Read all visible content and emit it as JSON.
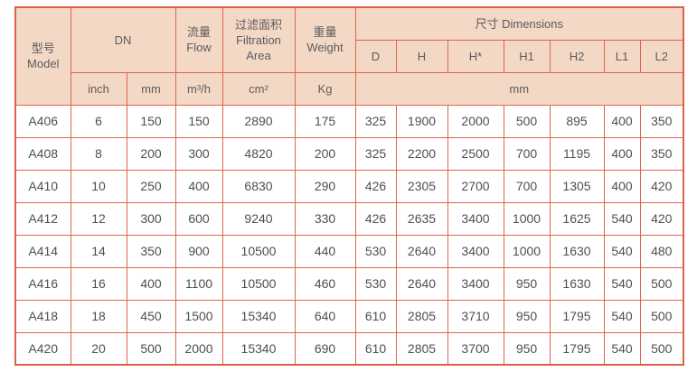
{
  "colors": {
    "header_background": "#f4d8c6",
    "border": "#e0604a",
    "header_text": "#5b5b5d",
    "cell_text": "#4f4f51",
    "page_background": "#ffffff"
  },
  "table": {
    "header": {
      "model_cn": "型号",
      "model_en": "Model",
      "dn": "DN",
      "flow_cn": "流量",
      "flow_en": "Flow",
      "filtration_cn": "过滤面积",
      "filtration_en1": "Filtration",
      "filtration_en2": "Area",
      "weight_cn": "重量",
      "weight_en": "Weight",
      "dimensions": "尺寸 Dimensions",
      "dim_cols": [
        "D",
        "H",
        "H*",
        "H1",
        "H2",
        "L1",
        "L2"
      ],
      "units": {
        "inch": "inch",
        "mm": "mm",
        "flow": "m³/h",
        "area": "cm²",
        "weight": "Kg",
        "dim": "mm"
      }
    },
    "rows": [
      {
        "model": "A406",
        "inch": "6",
        "mm": "150",
        "flow": "150",
        "area": "2890",
        "weight": "175",
        "dims": [
          "325",
          "1900",
          "2000",
          "500",
          "895",
          "400",
          "350"
        ]
      },
      {
        "model": "A408",
        "inch": "8",
        "mm": "200",
        "flow": "300",
        "area": "4820",
        "weight": "200",
        "dims": [
          "325",
          "2200",
          "2500",
          "700",
          "1195",
          "400",
          "350"
        ]
      },
      {
        "model": "A410",
        "inch": "10",
        "mm": "250",
        "flow": "400",
        "area": "6830",
        "weight": "290",
        "dims": [
          "426",
          "2305",
          "2700",
          "700",
          "1305",
          "400",
          "420"
        ]
      },
      {
        "model": "A412",
        "inch": "12",
        "mm": "300",
        "flow": "600",
        "area": "9240",
        "weight": "330",
        "dims": [
          "426",
          "2635",
          "3400",
          "1000",
          "1625",
          "540",
          "420"
        ]
      },
      {
        "model": "A414",
        "inch": "14",
        "mm": "350",
        "flow": "900",
        "area": "10500",
        "weight": "440",
        "dims": [
          "530",
          "2640",
          "3400",
          "1000",
          "1630",
          "540",
          "480"
        ]
      },
      {
        "model": "A416",
        "inch": "16",
        "mm": "400",
        "flow": "1100",
        "area": "10500",
        "weight": "460",
        "dims": [
          "530",
          "2640",
          "3400",
          "950",
          "1630",
          "540",
          "500"
        ]
      },
      {
        "model": "A418",
        "inch": "18",
        "mm": "450",
        "flow": "1500",
        "area": "15340",
        "weight": "640",
        "dims": [
          "610",
          "2805",
          "3710",
          "950",
          "1795",
          "540",
          "500"
        ]
      },
      {
        "model": "A420",
        "inch": "20",
        "mm": "500",
        "flow": "2000",
        "area": "15340",
        "weight": "690",
        "dims": [
          "610",
          "2805",
          "3700",
          "950",
          "1795",
          "540",
          "500"
        ]
      }
    ]
  }
}
